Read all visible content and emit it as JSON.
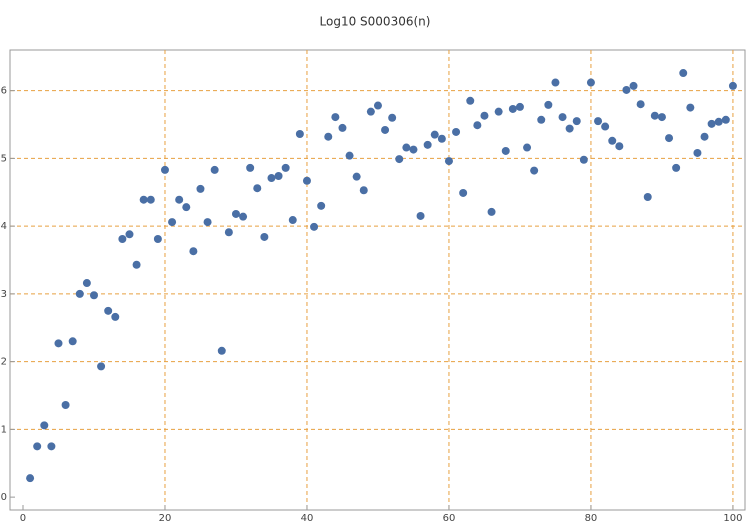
{
  "chart_data": {
    "type": "scatter",
    "title": "Log10 S000306(n)",
    "x": [
      1,
      2,
      3,
      4,
      5,
      6,
      7,
      8,
      9,
      10,
      11,
      12,
      13,
      14,
      15,
      16,
      17,
      18,
      19,
      20,
      21,
      22,
      23,
      24,
      25,
      26,
      27,
      28,
      29,
      30,
      31,
      32,
      33,
      34,
      35,
      36,
      37,
      38,
      39,
      40,
      41,
      42,
      43,
      44,
      45,
      46,
      47,
      48,
      49,
      50,
      51,
      52,
      53,
      54,
      55,
      56,
      57,
      58,
      59,
      60,
      61,
      62,
      63,
      64,
      65,
      66,
      67,
      68,
      69,
      70,
      71,
      72,
      73,
      74,
      75,
      76,
      77,
      78,
      79,
      80,
      81,
      82,
      83,
      84,
      85,
      86,
      87,
      88,
      89,
      90,
      91,
      92,
      93,
      94,
      95,
      96,
      97,
      98,
      99,
      100
    ],
    "values": [
      0.28,
      0.75,
      1.06,
      0.75,
      2.27,
      1.36,
      2.3,
      3.0,
      3.16,
      2.98,
      1.93,
      2.75,
      2.66,
      3.81,
      3.88,
      3.43,
      4.39,
      4.39,
      3.81,
      4.83,
      4.06,
      4.39,
      4.28,
      3.63,
      4.55,
      4.06,
      4.83,
      2.16,
      3.91,
      4.18,
      4.14,
      4.86,
      4.56,
      3.84,
      4.71,
      4.74,
      4.86,
      4.09,
      5.36,
      4.67,
      3.99,
      4.3,
      5.32,
      5.61,
      5.45,
      5.04,
      4.73,
      4.53,
      5.69,
      5.78,
      5.42,
      5.6,
      4.99,
      5.16,
      5.13,
      4.15,
      5.2,
      5.35,
      5.29,
      4.96,
      5.39,
      4.49,
      5.85,
      5.49,
      5.63,
      4.21,
      5.69,
      5.11,
      5.73,
      5.76,
      5.16,
      4.82,
      5.57,
      5.79,
      6.12,
      5.61,
      5.44,
      5.55,
      4.98,
      6.12,
      5.55,
      5.47,
      5.26,
      5.18,
      6.01,
      6.07,
      5.8,
      4.43,
      5.63,
      5.61,
      5.3,
      4.86,
      6.26,
      5.75,
      5.08,
      5.32,
      5.51,
      5.54,
      5.57,
      6.07
    ],
    "color": "#4a6fa5",
    "xlim": [
      -1.83,
      101.7
    ],
    "ylim": [
      -0.19,
      6.6
    ],
    "xticks": [
      0,
      20,
      40,
      60,
      80,
      100
    ],
    "yticks": [
      0,
      1,
      2,
      3,
      4,
      5,
      6
    ],
    "xgrid": [
      20,
      40,
      60,
      80,
      100
    ],
    "ygrid": [
      1,
      2,
      3,
      4,
      5,
      6
    ],
    "grid_color": "#e8a040"
  }
}
